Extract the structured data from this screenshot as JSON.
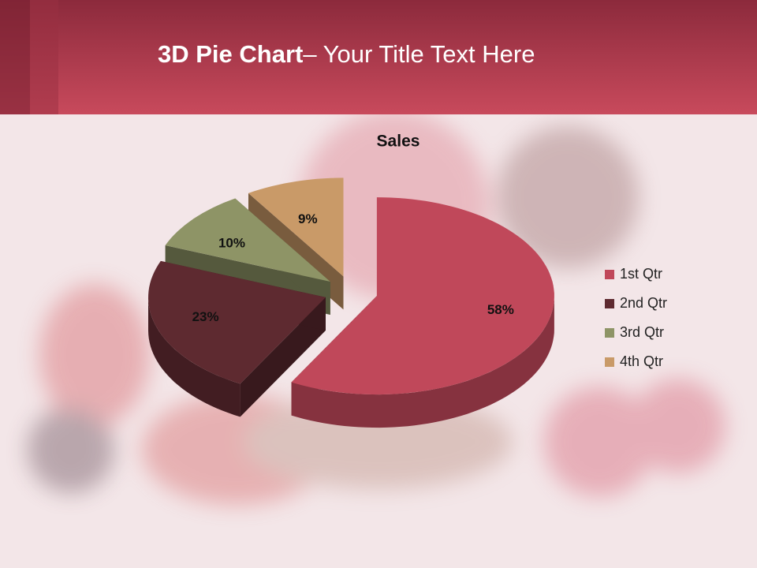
{
  "header": {
    "title_bold": "3D Pie Chart",
    "title_rest": "– Your Title Text Here"
  },
  "chart_data": {
    "type": "pie",
    "title": "Sales",
    "categories": [
      "1st Qtr",
      "2nd Qtr",
      "3rd Qtr",
      "4th Qtr"
    ],
    "values": [
      58,
      23,
      10,
      9
    ],
    "value_labels": [
      "58%",
      "23%",
      "10%",
      "9%"
    ],
    "colors": [
      "#c0485a",
      "#5e2a30",
      "#8e9466",
      "#c99a68"
    ],
    "legend": "right"
  }
}
